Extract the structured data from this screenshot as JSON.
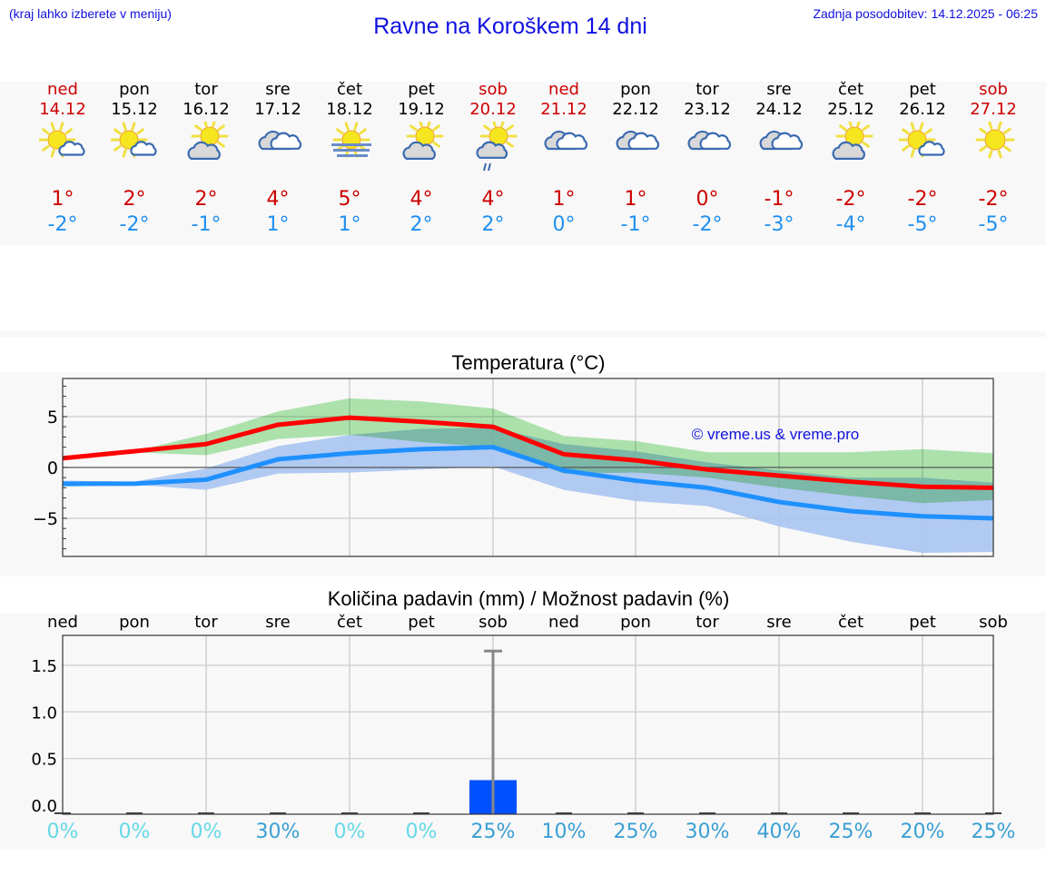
{
  "header": {
    "location_hint": "(kraj lahko izberete v meniju)",
    "title": "Ravne na Koroškem 14 dni",
    "last_update": "Zadnja posodobitev: 14.12.2025 - 06:25"
  },
  "forecast": {
    "days": [
      {
        "name": "ned",
        "date": "14.12",
        "icon": "sun-with-small-cloud-icon",
        "max": "1°",
        "min": "-2°",
        "weekend": true
      },
      {
        "name": "pon",
        "date": "15.12",
        "icon": "sun-with-small-cloud-icon",
        "max": "2°",
        "min": "-2°",
        "weekend": false
      },
      {
        "name": "tor",
        "date": "16.12",
        "icon": "partly-cloudy-icon",
        "max": "2°",
        "min": "-1°",
        "weekend": false
      },
      {
        "name": "sre",
        "date": "17.12",
        "icon": "cloudy-icon",
        "max": "4°",
        "min": "1°",
        "weekend": false
      },
      {
        "name": "čet",
        "date": "18.12",
        "icon": "sun-fog-icon",
        "max": "5°",
        "min": "1°",
        "weekend": false
      },
      {
        "name": "pet",
        "date": "19.12",
        "icon": "partly-cloudy-icon",
        "max": "4°",
        "min": "2°",
        "weekend": false
      },
      {
        "name": "sob",
        "date": "20.12",
        "icon": "partly-cloudy-light-rain-icon",
        "max": "4°",
        "min": "2°",
        "weekend": true
      },
      {
        "name": "ned",
        "date": "21.12",
        "icon": "cloudy-icon",
        "max": "1°",
        "min": "0°",
        "weekend": true
      },
      {
        "name": "pon",
        "date": "22.12",
        "icon": "cloudy-icon",
        "max": "1°",
        "min": "-1°",
        "weekend": false
      },
      {
        "name": "tor",
        "date": "23.12",
        "icon": "cloudy-icon",
        "max": "0°",
        "min": "-2°",
        "weekend": false
      },
      {
        "name": "sre",
        "date": "24.12",
        "icon": "cloudy-icon",
        "max": "-1°",
        "min": "-3°",
        "weekend": false
      },
      {
        "name": "čet",
        "date": "25.12",
        "icon": "partly-cloudy-icon",
        "max": "-2°",
        "min": "-4°",
        "weekend": false
      },
      {
        "name": "pet",
        "date": "26.12",
        "icon": "sun-with-small-cloud-icon",
        "max": "-2°",
        "min": "-5°",
        "weekend": false
      },
      {
        "name": "sob",
        "date": "27.12",
        "icon": "sunny-icon",
        "max": "-2°",
        "min": "-5°",
        "weekend": true
      }
    ]
  },
  "colors": {
    "link_blue": "#1010e0",
    "weekend_red": "#cc0000",
    "max_line": "#ff0000",
    "min_line": "#1e90ff",
    "max_band": "#a8e6a8",
    "min_band": "#a8c4f0",
    "overlap_band": "#7fc8a8",
    "precip_bar": "#0050ff",
    "precip_error": "#888888",
    "pct_low": "#66d8e6",
    "pct_high": "#3a9fd4",
    "panel_bg": "#f8f8f8"
  },
  "chart_data": [
    {
      "type": "line",
      "title": "Temperatura (°C)",
      "xlabel": "",
      "ylabel": "",
      "ylim": [
        -8.7,
        8.7
      ],
      "yticks": [
        "5",
        "0",
        "−5"
      ],
      "grid": true,
      "x": [
        "14.12",
        "15.12",
        "16.12",
        "17.12",
        "18.12",
        "19.12",
        "20.12",
        "21.12",
        "22.12",
        "23.12",
        "24.12",
        "25.12",
        "26.12",
        "27.12"
      ],
      "series": [
        {
          "name": "max",
          "values": [
            0.9,
            1.6,
            2.3,
            4.2,
            4.9,
            4.5,
            4.0,
            1.3,
            0.7,
            -0.2,
            -0.8,
            -1.4,
            -1.9,
            -2.0
          ]
        },
        {
          "name": "min",
          "values": [
            -1.6,
            -1.6,
            -1.2,
            0.8,
            1.4,
            1.8,
            2.0,
            -0.3,
            -1.3,
            -2.0,
            -3.4,
            -4.3,
            -4.8,
            -5.0
          ]
        },
        {
          "name": "max_band_upper",
          "values": [
            1.1,
            1.6,
            3.3,
            5.5,
            6.8,
            6.5,
            5.8,
            3.1,
            2.6,
            1.5,
            1.5,
            1.5,
            1.8,
            1.4
          ]
        },
        {
          "name": "max_band_lower",
          "values": [
            0.7,
            1.5,
            1.2,
            2.8,
            3.2,
            2.5,
            2.0,
            -0.6,
            -0.5,
            -1.0,
            -2.0,
            -2.8,
            -3.5,
            -3.2
          ]
        },
        {
          "name": "min_band_upper",
          "values": [
            -1.3,
            -1.4,
            -0.1,
            2.1,
            3.2,
            3.8,
            3.9,
            2.3,
            1.6,
            0.5,
            -0.3,
            -1.0,
            -1.0,
            -1.5
          ]
        },
        {
          "name": "min_band_lower",
          "values": [
            -1.9,
            -1.7,
            -2.2,
            -0.6,
            -0.5,
            -0.2,
            0.1,
            -2.2,
            -3.3,
            -3.8,
            -5.8,
            -7.3,
            -8.4,
            -8.3
          ]
        }
      ],
      "annotations": [
        "© vreme.us & vreme.pro"
      ]
    },
    {
      "type": "bar",
      "title": "Količina padavin (mm) / Možnost padavin (%)",
      "categories": [
        "ned",
        "pon",
        "tor",
        "sre",
        "čet",
        "pet",
        "sob",
        "ned",
        "pon",
        "tor",
        "sre",
        "čet",
        "pet",
        "sob"
      ],
      "values": [
        0,
        0,
        0,
        0,
        0,
        0,
        0.2,
        0,
        0,
        0,
        0,
        0,
        0,
        0
      ],
      "error_upper": [
        0,
        0,
        0,
        0,
        0,
        0,
        1.75,
        0,
        0,
        0,
        0,
        0,
        0,
        0
      ],
      "probability_pct": [
        0,
        0,
        0,
        30,
        0,
        0,
        25,
        10,
        25,
        30,
        40,
        25,
        20,
        25
      ],
      "probability_labels": [
        "0%",
        "0%",
        "0%",
        "30%",
        "0%",
        "0%",
        "25%",
        "10%",
        "25%",
        "30%",
        "40%",
        "25%",
        "20%",
        "25%"
      ],
      "yticks": [
        "0.0",
        "0.5",
        "1.0",
        "1.5"
      ],
      "ylim": [
        -0.03,
        1.9
      ],
      "xlabel": "",
      "ylabel": "",
      "grid": true
    }
  ]
}
